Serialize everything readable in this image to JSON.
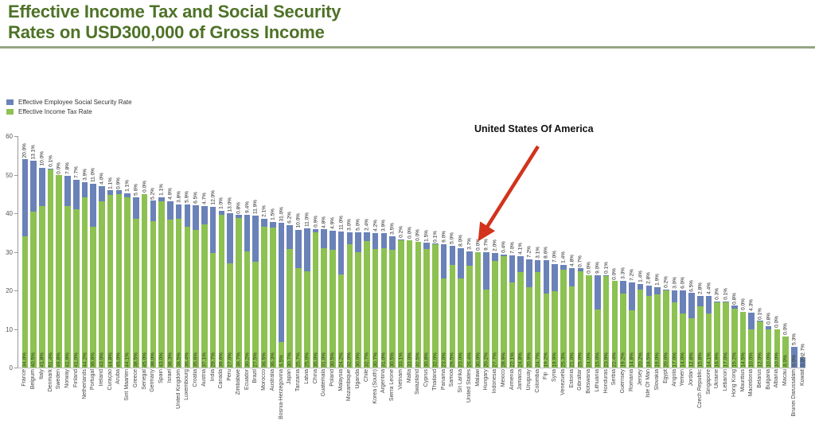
{
  "header": {
    "title_line1": "Effective Income Tax and Social Security",
    "title_line2": "Rates on USD300,000 of Gross Income"
  },
  "legend": {
    "items": [
      {
        "label": "Effective Employee Social Security Rate",
        "color": "#6a82b8"
      },
      {
        "label": "Effective Income Tax Rate",
        "color": "#8dc152"
      }
    ]
  },
  "annotation": {
    "text": "United States Of America",
    "arrow_color": "#d2331c",
    "points_to": "United States"
  },
  "chart_data": {
    "type": "bar",
    "stacked": true,
    "title": "Effective Income Tax and Social Security Rates on USD300,000 of Gross Income",
    "xlabel": "",
    "ylabel": "",
    "ylim": [
      0,
      60
    ],
    "yticks": [
      0,
      10,
      20,
      30,
      40,
      50,
      60
    ],
    "grid": false,
    "legend_position": "top-left",
    "value_label_format": "0.0%",
    "categories": [
      "France",
      "Belgium",
      "Italy",
      "Denmark",
      "Sweden",
      "Norway",
      "Finland",
      "Netherlands",
      "Portugal",
      "Ireland",
      "Curaçao",
      "Aruba",
      "Sint Maarten",
      "Greece",
      "Senegal",
      "Germany",
      "Spain",
      "Israel",
      "United Kingdom",
      "Luxembourg",
      "Croatia",
      "Austria",
      "India",
      "Canada",
      "Peru",
      "Zimbabwe",
      "Ecuador",
      "Brazil",
      "Morocco",
      "Australia",
      "Bosnia-Herzegovina",
      "Japan",
      "Tanzania",
      "Latvia",
      "China",
      "Guatemala",
      "Poland",
      "Malaysia",
      "Mozambique",
      "Uganda",
      "Chile",
      "Korea (South)",
      "Argentina",
      "Sierra Leone",
      "Vietnam",
      "Malta",
      "Swaziland",
      "Cyprus",
      "Thailand",
      "Panama",
      "Samoa",
      "Sri Lanka",
      "United States",
      "Malawi",
      "Hungary",
      "Indonesia",
      "Mexico",
      "Armenia",
      "Jamaica",
      "Uruguay",
      "Colombia",
      "Fiji",
      "Syria",
      "Venezuela",
      "Estonia",
      "Gibraltar",
      "Botswana",
      "Lithuania",
      "Honduras",
      "Serbia",
      "Guernsey",
      "Romania",
      "Jersey",
      "Isle Of Man",
      "Slovakia",
      "Egypt",
      "Angola",
      "Yemen",
      "Jordan",
      "Czech Republic",
      "Singapore",
      "Ukraine",
      "Lebanon",
      "Hong Kong",
      "Mauritius",
      "Macedonia",
      "Belarus",
      "Bulgaria",
      "Albania",
      "Macau",
      "Brunei Darussalam",
      "Kuwait"
    ],
    "series": [
      {
        "name": "Effective Income Tax Rate",
        "color": "#8dc152",
        "values": [
          34.0,
          40.5,
          41.8,
          51.4,
          49.8,
          41.9,
          41.0,
          44.2,
          36.6,
          43.0,
          44.8,
          45.0,
          44.1,
          38.5,
          45.0,
          38.0,
          43.0,
          38.3,
          38.5,
          36.4,
          35.6,
          37.1,
          29.7,
          39.6,
          27.0,
          38.7,
          30.2,
          27.5,
          36.5,
          36.3,
          6.5,
          30.7,
          25.7,
          25.0,
          35.0,
          31.0,
          30.5,
          24.2,
          32.0,
          30.0,
          32.7,
          30.7,
          31.0,
          30.5,
          33.1,
          33.0,
          32.5,
          30.8,
          32.0,
          23.0,
          26.5,
          23.0,
          26.4,
          30.0,
          20.2,
          27.7,
          28.9,
          22.1,
          24.8,
          20.9,
          24.7,
          19.2,
          19.9,
          25.3,
          21.0,
          25.0,
          24.0,
          15.0,
          23.9,
          22.4,
          19.2,
          14.8,
          20.2,
          18.5,
          19.0,
          20.0,
          17.0,
          14.0,
          12.8,
          15.8,
          14.1,
          16.9,
          17.0,
          15.2,
          14.5,
          10.0,
          12.0,
          10.0,
          10.0,
          8.0,
          0.0,
          0.0
        ]
      },
      {
        "name": "Effective Employee Social Security Rate",
        "color": "#6a82b8",
        "values": [
          20.0,
          13.1,
          10.0,
          0.1,
          0.0,
          7.8,
          7.7,
          3.9,
          11.0,
          4.0,
          1.1,
          0.9,
          1.1,
          5.6,
          0.0,
          5.2,
          1.1,
          4.9,
          3.8,
          5.9,
          6.5,
          4.7,
          12.0,
          1.0,
          13.0,
          0.8,
          9.4,
          11.9,
          2.1,
          1.5,
          31.0,
          6.2,
          10.0,
          11.0,
          0.9,
          4.8,
          4.9,
          11.0,
          3.0,
          5.0,
          2.4,
          4.2,
          3.9,
          3.5,
          0.2,
          0.0,
          0.0,
          1.5,
          0.1,
          9.0,
          5.0,
          8.0,
          3.7,
          0.0,
          9.7,
          2.0,
          0.4,
          7.0,
          4.1,
          7.2,
          3.1,
          8.6,
          7.0,
          1.4,
          4.8,
          0.7,
          0.0,
          9.0,
          0.1,
          0.0,
          3.3,
          7.2,
          1.4,
          2.8,
          1.9,
          0.2,
          3.0,
          6.0,
          6.5,
          2.8,
          4.4,
          0.3,
          0.1,
          0.8,
          0.0,
          4.3,
          0.1,
          0.8,
          0.0,
          0.0,
          5.3,
          2.7
        ]
      }
    ]
  }
}
